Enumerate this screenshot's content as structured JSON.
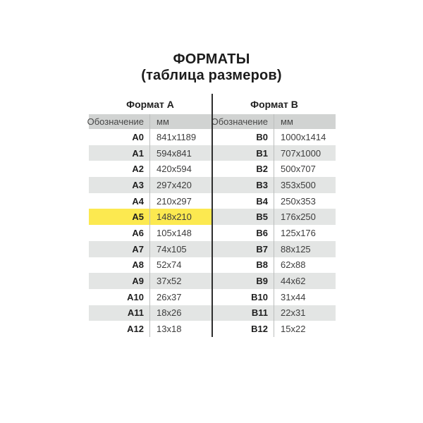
{
  "page": {
    "title_line1": "ФОРМАТЫ",
    "title_line2": "(таблица размеров)"
  },
  "table": {
    "section_a_label": "Формат А",
    "section_b_label": "Формат В",
    "col_designation": "Обозначение",
    "col_mm": "мм",
    "highlighted_code": "A5",
    "formats_a": [
      {
        "code": "A0",
        "mm": "841x1189"
      },
      {
        "code": "A1",
        "mm": "594x841"
      },
      {
        "code": "A2",
        "mm": "420x594"
      },
      {
        "code": "A3",
        "mm": "297x420"
      },
      {
        "code": "A4",
        "mm": "210x297"
      },
      {
        "code": "A5",
        "mm": "148x210"
      },
      {
        "code": "A6",
        "mm": "105x148"
      },
      {
        "code": "A7",
        "mm": "74x105"
      },
      {
        "code": "A8",
        "mm": "52x74"
      },
      {
        "code": "A9",
        "mm": "37x52"
      },
      {
        "code": "A10",
        "mm": "26x37"
      },
      {
        "code": "A11",
        "mm": "18x26"
      },
      {
        "code": "A12",
        "mm": "13x18"
      }
    ],
    "formats_b": [
      {
        "code": "B0",
        "mm": "1000x1414"
      },
      {
        "code": "B1",
        "mm": "707x1000"
      },
      {
        "code": "B2",
        "mm": "500x707"
      },
      {
        "code": "B3",
        "mm": "353x500"
      },
      {
        "code": "B4",
        "mm": "250x353"
      },
      {
        "code": "B5",
        "mm": "176x250"
      },
      {
        "code": "B6",
        "mm": "125x176"
      },
      {
        "code": "B7",
        "mm": "88x125"
      },
      {
        "code": "B8",
        "mm": "62x88"
      },
      {
        "code": "B9",
        "mm": "44x62"
      },
      {
        "code": "B10",
        "mm": "31x44"
      },
      {
        "code": "B11",
        "mm": "22x31"
      },
      {
        "code": "B12",
        "mm": "15x22"
      }
    ]
  },
  "colors": {
    "header_bg": "#d1d3d2",
    "row_alt_bg": "#e3e5e4",
    "highlight_bg": "#fce950",
    "divider_dark": "#2e2e2e",
    "divider_light": "#bcbebd",
    "background": "#ffffff"
  }
}
